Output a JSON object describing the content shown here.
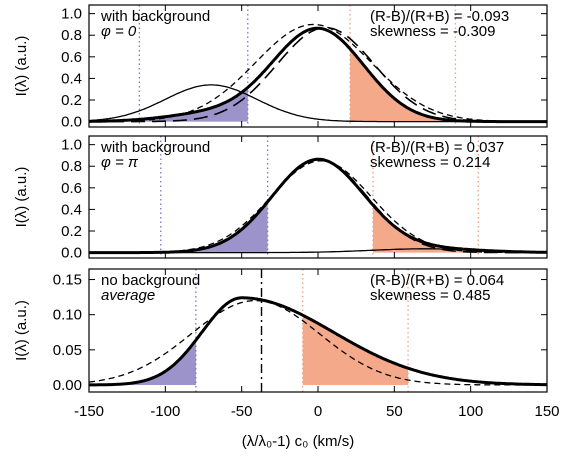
{
  "chart_data": [
    {
      "type": "line",
      "xlim": [
        -150,
        150
      ],
      "ylim": [
        -0.05,
        1.08
      ],
      "ylabel": "I(λ) (a.u.)",
      "yticks": [
        0.0,
        0.2,
        0.4,
        0.6,
        0.8,
        1.0
      ],
      "ytick_labels": [
        "0.0",
        "0.2",
        "0.4",
        "0.6",
        "0.8",
        "1.0"
      ],
      "annotations": [
        "with background",
        "φ = 0",
        "(R-B)/(R+B) = -0.093",
        "skewness = -0.309"
      ],
      "shaded": [
        {
          "color": "#9b93c9",
          "x": [
            -117,
            -46
          ]
        },
        {
          "color": "#f4a98a",
          "x": [
            21,
            90
          ]
        }
      ],
      "vlines": [
        {
          "x": -117,
          "color": "#7777d6",
          "style": "dotted"
        },
        {
          "x": -46,
          "color": "#7777d6",
          "style": "dotted"
        },
        {
          "x": 21,
          "color": "#f0a080",
          "style": "dotted"
        },
        {
          "x": 90,
          "color": "#f0a080",
          "style": "dotted"
        }
      ],
      "series": [
        {
          "style": "thick",
          "components": [
            {
              "amp": 0.86,
              "mu": 0,
              "sigma": 30
            },
            {
              "amp": 0.07,
              "mu": -70,
              "sigma": 30
            }
          ]
        },
        {
          "style": "thin",
          "components": [
            {
              "amp": 0.34,
              "mu": -70,
              "sigma": 30
            }
          ]
        },
        {
          "style": "long-dash",
          "components": [
            {
              "amp": 0.87,
              "mu": 5,
              "sigma": 32
            }
          ]
        },
        {
          "style": "short-dash",
          "components": [
            {
              "amp": 0.9,
              "mu": -3,
              "sigma": 38
            }
          ]
        }
      ]
    },
    {
      "type": "line",
      "xlim": [
        -150,
        150
      ],
      "ylim": [
        -0.05,
        1.08
      ],
      "ylabel": "I(λ) (a.u.)",
      "yticks": [
        0.0,
        0.2,
        0.4,
        0.6,
        0.8,
        1.0
      ],
      "ytick_labels": [
        "0.0",
        "0.2",
        "0.4",
        "0.6",
        "0.8",
        "1.0"
      ],
      "annotations": [
        "with background",
        "φ = π",
        "(R-B)/(R+B) = 0.037",
        "skewness = 0.214"
      ],
      "shaded": [
        {
          "color": "#9b93c9",
          "x": [
            -103,
            -33
          ]
        },
        {
          "color": "#f4a98a",
          "x": [
            36,
            105
          ]
        }
      ],
      "vlines": [
        {
          "x": -103,
          "color": "#7777d6",
          "style": "dotted"
        },
        {
          "x": -33,
          "color": "#7777d6",
          "style": "dotted"
        },
        {
          "x": 36,
          "color": "#f0a080",
          "style": "dotted"
        },
        {
          "x": 105,
          "color": "#f0a080",
          "style": "dotted"
        }
      ],
      "series": [
        {
          "style": "thick",
          "components": [
            {
              "amp": 0.86,
              "mu": 0,
              "sigma": 30
            },
            {
              "amp": 0.035,
              "mu": 70,
              "sigma": 35
            }
          ]
        },
        {
          "style": "thin",
          "components": [
            {
              "amp": 0.035,
              "mu": 70,
              "sigma": 35
            }
          ]
        },
        {
          "style": "long-dash",
          "components": [
            {
              "amp": 0.86,
              "mu": 1,
              "sigma": 31
            }
          ]
        },
        {
          "style": "short-dash",
          "components": [
            {
              "amp": 0.85,
              "mu": 2,
              "sigma": 33
            }
          ]
        }
      ]
    },
    {
      "type": "line",
      "xlim": [
        -150,
        150
      ],
      "ylim": [
        -0.01,
        0.165
      ],
      "ylabel": "I(λ) (a.u.)",
      "xlabel": "(λ/λ₀-1) c₀ (km/s)",
      "xticks": [
        -150,
        -100,
        -50,
        0,
        50,
        100,
        150
      ],
      "xtick_labels": [
        "-150",
        "-100",
        "-50",
        "0",
        "50",
        "100",
        "150"
      ],
      "yticks": [
        0.0,
        0.05,
        0.1,
        0.15
      ],
      "ytick_labels": [
        "0.00",
        "0.05",
        "0.10",
        "0.15"
      ],
      "annotations": [
        "no background",
        "average",
        "(R-B)/(R+B) = 0.064",
        "skewness = 0.485"
      ],
      "shaded": [
        {
          "color": "#9b93c9",
          "x": [
            -150,
            -80
          ]
        },
        {
          "color": "#f4a98a",
          "x": [
            -10,
            59
          ]
        }
      ],
      "vlines": [
        {
          "x": -80,
          "color": "#7777d6",
          "style": "dotted"
        },
        {
          "x": -10,
          "color": "#f0a080",
          "style": "dotted"
        },
        {
          "x": 59,
          "color": "#f0a080",
          "style": "dotted"
        },
        {
          "x": -37,
          "color": "#000000",
          "style": "dash-dot"
        }
      ],
      "series": [
        {
          "style": "thick",
          "skewed": true,
          "peak": -50,
          "amp": 0.124,
          "sigma_left": 26,
          "sigma_right": 60
        },
        {
          "style": "short-dash",
          "components": [
            {
              "amp": 0.12,
              "mu": -41,
              "sigma": 42
            }
          ]
        }
      ]
    }
  ]
}
